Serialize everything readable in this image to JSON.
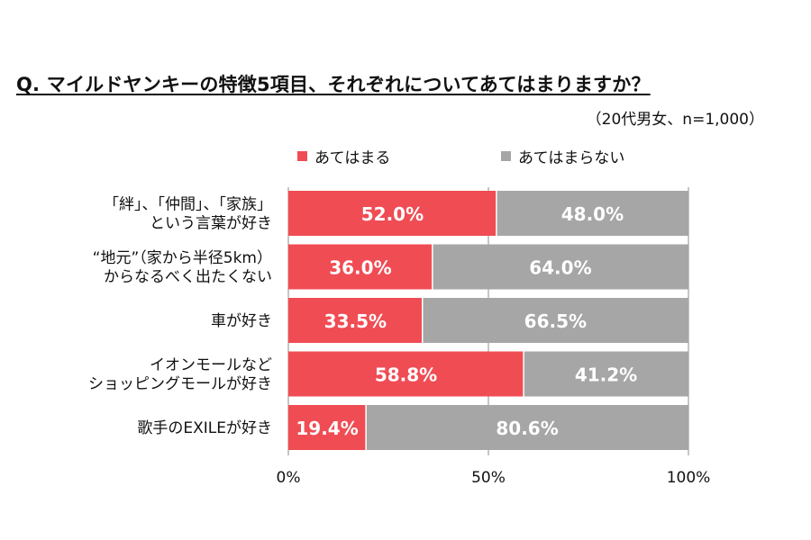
{
  "title": "Q. マイルドヤンキーの特徴5項目、それぞれについてあてはまりますか？",
  "subtitle": "（20代男女、n=1,000）",
  "legend": {
    "yes_label": "あてはまる",
    "no_label": "あてはまらない"
  },
  "colors": {
    "yes": "#f04c54",
    "no": "#a6a6a6",
    "grid": "#8c8c8c",
    "value_text": "#ffffff"
  },
  "chart_data": {
    "type": "bar",
    "orientation": "horizontal",
    "stacked": true,
    "unit": "%",
    "categories": [
      [
        "「絆」、「仲間」、「家族」",
        "という言葉が好き"
      ],
      [
        "“地元”（家から半径5km）",
        "からなるべく出たくない"
      ],
      [
        "車が好き"
      ],
      [
        "イオンモールなど",
        "ショッピングモールが好き"
      ],
      [
        "歌手のEXILEが好き"
      ]
    ],
    "series": [
      {
        "name": "あてはまる",
        "color": "#f04c54",
        "values": [
          52.0,
          36.0,
          33.5,
          58.8,
          19.4
        ],
        "labels": [
          "52.0%",
          "36.0%",
          "33.5%",
          "58.8%",
          "19.4%"
        ]
      },
      {
        "name": "あてはまらない",
        "color": "#a6a6a6",
        "values": [
          48.0,
          64.0,
          66.5,
          41.2,
          80.6
        ],
        "labels": [
          "48.0%",
          "64.0%",
          "66.5%",
          "41.2%",
          "80.6%"
        ]
      }
    ],
    "xlim": [
      0,
      100
    ],
    "xticks": [
      0,
      50,
      100
    ],
    "xtick_labels": [
      "0%",
      "50%",
      "100%"
    ],
    "grid": "vertical",
    "legend_position": "top"
  }
}
